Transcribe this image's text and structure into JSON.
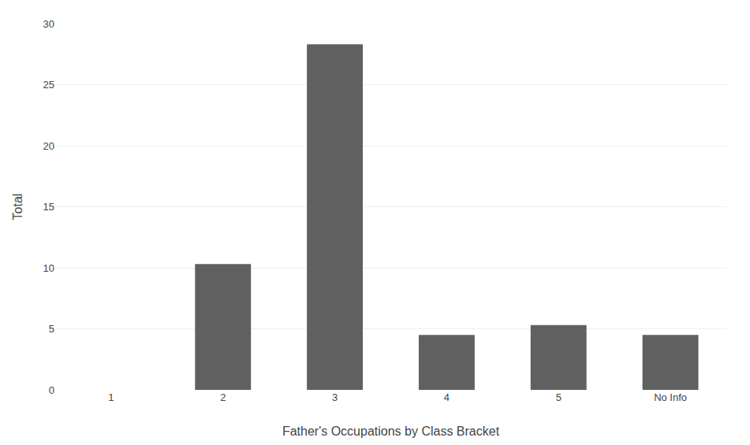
{
  "chart_data": {
    "type": "bar",
    "xlabel": "Father's Occupations by Class Bracket",
    "ylabel": "Total",
    "categories": [
      "1",
      "2",
      "3",
      "4",
      "5",
      "No Info"
    ],
    "values": [
      0,
      10.3,
      28.3,
      4.5,
      5.3,
      4.5
    ],
    "color": "#606060",
    "ylim": [
      0,
      30
    ],
    "yticks": [
      0,
      5,
      10,
      15,
      20,
      25,
      30
    ],
    "grid": true
  }
}
